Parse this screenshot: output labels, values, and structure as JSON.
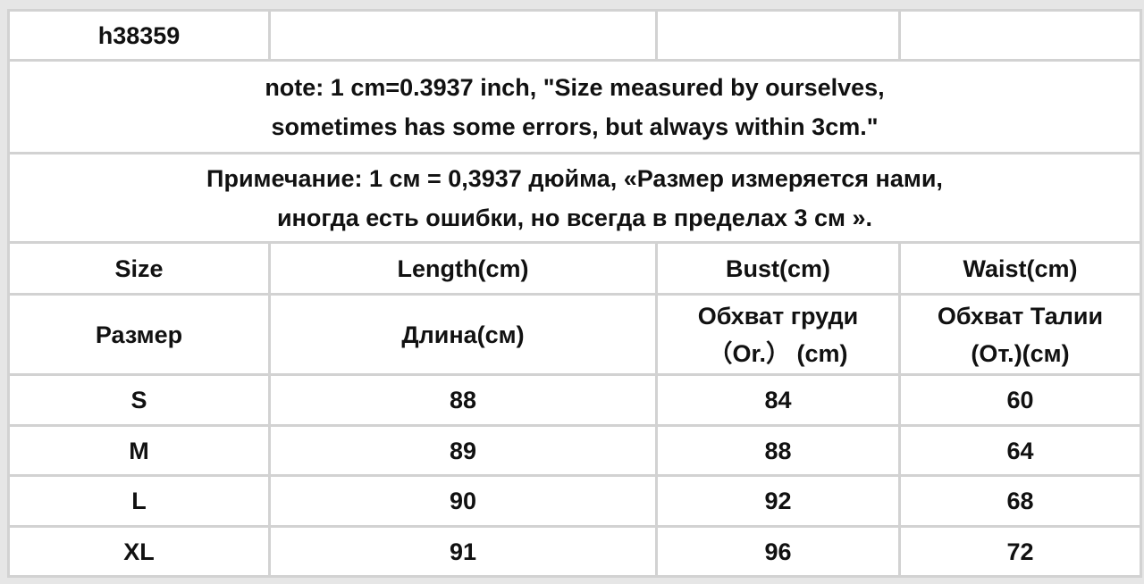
{
  "code": "h38359",
  "note_en": [
    "note: 1 cm=0.3937 inch, \"Size measured by ourselves,",
    "sometimes has some errors, but always within 3cm.\""
  ],
  "note_ru": [
    "Примечание: 1 см = 0,3937 дюйма, «Размер измеряется нами,",
    "иногда есть ошибки, но всегда в пределах 3 см »."
  ],
  "headers_en": [
    "Size",
    "Length(cm)",
    "Bust(cm)",
    "Waist(cm)"
  ],
  "headers_ru": [
    [
      "Размер"
    ],
    [
      "Длина(см)"
    ],
    [
      "Обхват груди",
      "（Or.） (cm)"
    ],
    [
      "Обхват Талии",
      "(От.)(см)"
    ]
  ],
  "rows": [
    [
      "S",
      "88",
      "84",
      "60"
    ],
    [
      "M",
      "89",
      "88",
      "64"
    ],
    [
      "L",
      "90",
      "92",
      "68"
    ],
    [
      "XL",
      "91",
      "96",
      "72"
    ]
  ]
}
